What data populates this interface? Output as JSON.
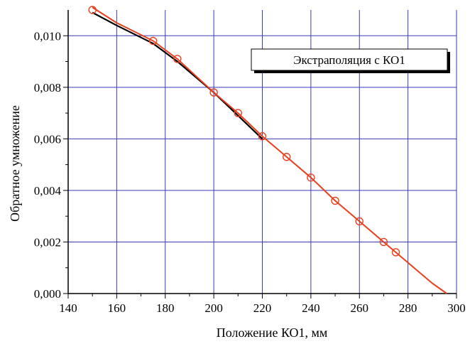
{
  "chart_data": {
    "type": "line",
    "title": "",
    "xlabel": "Положение КО1, мм",
    "ylabel": "Обратное умножение",
    "xlim": [
      140,
      300
    ],
    "ylim": [
      0.0,
      0.011
    ],
    "grid": true,
    "x_ticks": [
      140,
      160,
      180,
      200,
      220,
      240,
      260,
      280,
      300
    ],
    "x_tick_labels": [
      "140",
      "160",
      "180",
      "200",
      "220",
      "240",
      "260",
      "280",
      "300"
    ],
    "y_ticks": [
      0.0,
      0.002,
      0.004,
      0.006,
      0.008,
      0.01
    ],
    "y_tick_labels": [
      "0,000",
      "0,002",
      "0,004",
      "0,006",
      "0,008",
      "0,010"
    ],
    "legend": {
      "label": "Экстраполяция с КО1",
      "placement": "top-right"
    },
    "series": [
      {
        "color": "#000000",
        "x": [
          150,
          160,
          175,
          185,
          200,
          210,
          220
        ],
        "y": [
          0.0109,
          0.0104,
          0.0097,
          0.009,
          0.0078,
          0.0069,
          0.006
        ]
      },
      {
        "color": "#e8401c",
        "marker": "circle",
        "x": [
          150,
          175,
          185,
          200,
          210,
          220,
          230,
          240,
          250,
          260,
          270,
          275
        ],
        "y": [
          0.011,
          0.0098,
          0.0091,
          0.0078,
          0.007,
          0.0061,
          0.0053,
          0.0045,
          0.0036,
          0.0028,
          0.002,
          0.0016
        ]
      },
      {
        "color": "#e8401c",
        "x": [
          150,
          160,
          175,
          185,
          200,
          210,
          220,
          230,
          240,
          250,
          260,
          270,
          280,
          290,
          296
        ],
        "y": [
          0.0111,
          0.0105,
          0.0098,
          0.0091,
          0.0078,
          0.007,
          0.0061,
          0.0053,
          0.0045,
          0.0036,
          0.0028,
          0.002,
          0.0012,
          0.0004,
          0.0
        ]
      }
    ]
  }
}
